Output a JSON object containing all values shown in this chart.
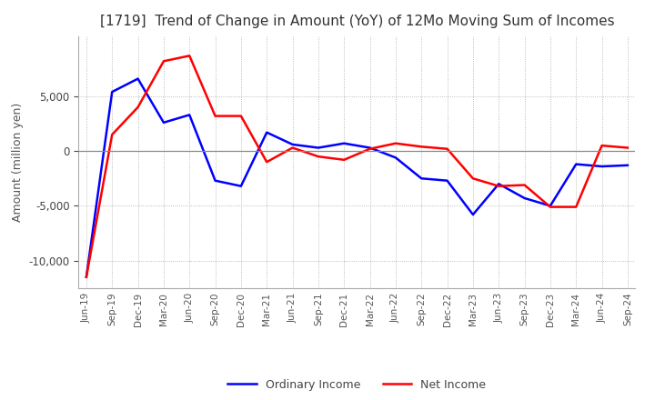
{
  "title": "[1719]  Trend of Change in Amount (YoY) of 12Mo Moving Sum of Incomes",
  "ylabel": "Amount (million yen)",
  "x_labels": [
    "Jun-19",
    "Sep-19",
    "Dec-19",
    "Mar-20",
    "Jun-20",
    "Sep-20",
    "Dec-20",
    "Mar-21",
    "Jun-21",
    "Sep-21",
    "Dec-21",
    "Mar-22",
    "Jun-22",
    "Sep-22",
    "Dec-22",
    "Mar-23",
    "Jun-23",
    "Sep-23",
    "Dec-23",
    "Mar-24",
    "Jun-24",
    "Sep-24"
  ],
  "ordinary_income": [
    -11500,
    5400,
    6600,
    2600,
    3300,
    -2700,
    -3200,
    1700,
    600,
    300,
    700,
    300,
    -600,
    -2500,
    -2700,
    -5800,
    -3000,
    -4300,
    -5000,
    -1200,
    -1400,
    -1300
  ],
  "net_income": [
    -11500,
    1500,
    4000,
    8200,
    8700,
    3200,
    3200,
    -1000,
    300,
    -500,
    -800,
    200,
    700,
    400,
    200,
    -2500,
    -3200,
    -3100,
    -5100,
    -5100,
    500,
    300
  ],
  "ordinary_color": "#0000FF",
  "net_color": "#FF0000",
  "ylim_min": -12500,
  "ylim_max": 10500,
  "yticks": [
    5000,
    0,
    -5000,
    -10000
  ],
  "background_color": "#FFFFFF",
  "grid_color": "#AAAAAA",
  "title_color": "#333333",
  "line_width": 1.8
}
